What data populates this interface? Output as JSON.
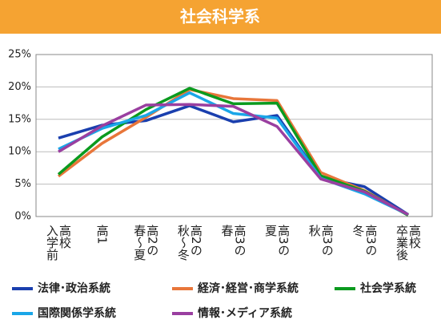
{
  "chart_data": {
    "type": "line",
    "title": "社会科学系",
    "categories": [
      [
        "高校",
        "入学前"
      ],
      [
        "高1"
      ],
      [
        "高2の",
        "春～夏"
      ],
      [
        "高2の",
        "秋～冬"
      ],
      [
        "高3の",
        "春"
      ],
      [
        "高3の",
        "夏"
      ],
      [
        "高3の",
        "秋"
      ],
      [
        "高3の",
        "冬"
      ],
      [
        "高校",
        "卒業後"
      ]
    ],
    "series": [
      {
        "name": "法律･政治系統",
        "color": "#1a3fae",
        "values": [
          12.1,
          14.1,
          14.8,
          17.1,
          14.6,
          15.6,
          6.0,
          4.6,
          0.3
        ]
      },
      {
        "name": "経済･経営･商学系統",
        "color": "#e8763a",
        "values": [
          6.2,
          11.3,
          15.3,
          19.6,
          18.2,
          17.9,
          6.8,
          4.0,
          0.2
        ]
      },
      {
        "name": "社会学系統",
        "color": "#0a9a1e",
        "values": [
          6.5,
          12.3,
          16.5,
          19.8,
          17.4,
          17.5,
          6.3,
          3.9,
          0.2
        ]
      },
      {
        "name": "国際関係学系統",
        "color": "#1aa6e8",
        "values": [
          10.4,
          13.6,
          15.6,
          19.1,
          15.9,
          15.2,
          5.9,
          3.5,
          0.3
        ]
      },
      {
        "name": "情報･メディア系統",
        "color": "#9a3fa0",
        "values": [
          10.0,
          14.0,
          17.2,
          17.3,
          17.0,
          13.9,
          5.8,
          3.8,
          0.3
        ]
      }
    ],
    "ylim": [
      0,
      25
    ],
    "yticks": [
      {
        "value": 0,
        "label": "0%"
      },
      {
        "value": 5,
        "label": "5%"
      },
      {
        "value": 10,
        "label": "10%"
      },
      {
        "value": 15,
        "label": "15%"
      },
      {
        "value": 20,
        "label": "20%"
      },
      {
        "value": 25,
        "label": "25%"
      }
    ],
    "grid": true
  }
}
